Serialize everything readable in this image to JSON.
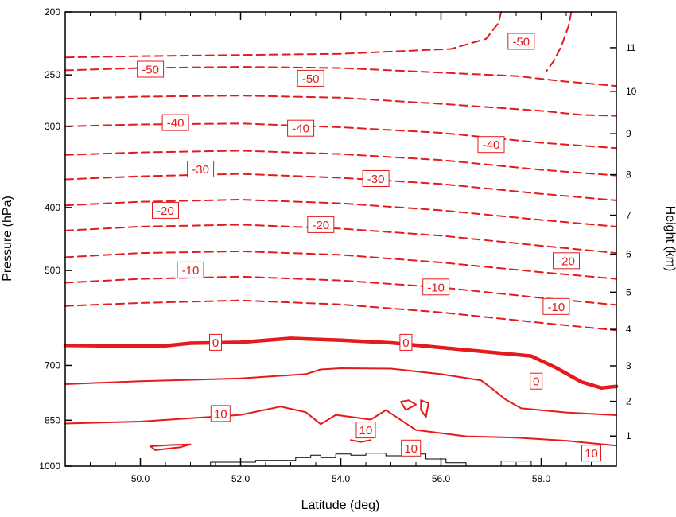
{
  "chart_data": {
    "type": "contour",
    "xlabel": "Latitude (deg)",
    "ylabel": "Pressure (hPa)",
    "y2label": "Height (km)",
    "xlim": [
      48.5,
      59.5
    ],
    "ylim_pressure": [
      1000,
      200
    ],
    "y_scale": "log",
    "x_ticks": [
      {
        "value": 50.0,
        "label": "50.0"
      },
      {
        "value": 52.0,
        "label": "52.0"
      },
      {
        "value": 54.0,
        "label": "54.0"
      },
      {
        "value": 56.0,
        "label": "56.0"
      },
      {
        "value": 58.0,
        "label": "58.0"
      }
    ],
    "y_ticks": [
      {
        "value": 200,
        "label": "200"
      },
      {
        "value": 250,
        "label": "250"
      },
      {
        "value": 300,
        "label": "300"
      },
      {
        "value": 400,
        "label": "400"
      },
      {
        "value": 500,
        "label": "500"
      },
      {
        "value": 700,
        "label": "700"
      },
      {
        "value": 850,
        "label": "850"
      },
      {
        "value": 1000,
        "label": "1000"
      }
    ],
    "height_ticks": [
      {
        "value": 1,
        "label": "1",
        "pressure": 899
      },
      {
        "value": 2,
        "label": "2",
        "pressure": 795
      },
      {
        "value": 3,
        "label": "3",
        "pressure": 701
      },
      {
        "value": 4,
        "label": "4",
        "pressure": 616
      },
      {
        "value": 5,
        "label": "5",
        "pressure": 540
      },
      {
        "value": 6,
        "label": "6",
        "pressure": 472
      },
      {
        "value": 7,
        "label": "7",
        "pressure": 411
      },
      {
        "value": 8,
        "label": "8",
        "pressure": 356
      },
      {
        "value": 9,
        "label": "9",
        "pressure": 308
      },
      {
        "value": 10,
        "label": "10",
        "pressure": 265
      },
      {
        "value": 11,
        "label": "11",
        "pressure": 227
      }
    ],
    "contour_color": "#e41a1c",
    "terrain_color": "#000000",
    "contours": [
      {
        "level": -55,
        "style": "dashed",
        "points": [
          [
            57.2,
            200
          ],
          [
            57.15,
            208
          ],
          [
            56.9,
            220
          ],
          [
            56.2,
            228
          ],
          [
            54.0,
            232
          ],
          [
            52.0,
            233
          ],
          [
            50.0,
            234
          ],
          [
            48.5,
            235
          ]
        ]
      },
      {
        "level": -55,
        "style": "dashed",
        "points": [
          [
            58.6,
            200
          ],
          [
            58.55,
            210
          ],
          [
            58.4,
            226
          ],
          [
            58.25,
            238
          ],
          [
            58.1,
            247
          ]
        ]
      },
      {
        "level": -50,
        "style": "dashed",
        "points": [
          [
            48.5,
            246
          ],
          [
            50.0,
            244
          ],
          [
            52.0,
            243
          ],
          [
            54.0,
            244
          ],
          [
            56.0,
            248
          ],
          [
            57.5,
            251
          ],
          [
            58.5,
            256
          ],
          [
            59.5,
            260
          ]
        ]
      },
      {
        "level": -45,
        "style": "dashed",
        "points": [
          [
            48.5,
            272
          ],
          [
            50.0,
            270
          ],
          [
            52.0,
            269
          ],
          [
            54.0,
            271
          ],
          [
            56.0,
            277
          ],
          [
            58.0,
            284
          ],
          [
            58.8,
            288
          ],
          [
            59.5,
            289
          ]
        ]
      },
      {
        "level": -40,
        "style": "dashed",
        "points": [
          [
            48.5,
            300
          ],
          [
            50.0,
            298
          ],
          [
            52.0,
            297
          ],
          [
            54.0,
            301
          ],
          [
            56.0,
            307
          ],
          [
            58.0,
            318
          ],
          [
            59.5,
            324
          ]
        ]
      },
      {
        "level": -35,
        "style": "dashed",
        "points": [
          [
            48.5,
            332
          ],
          [
            50.0,
            329
          ],
          [
            52.0,
            327
          ],
          [
            54.0,
            331
          ],
          [
            56.0,
            338
          ],
          [
            58.0,
            350
          ],
          [
            59.5,
            357
          ]
        ]
      },
      {
        "level": -30,
        "style": "dashed",
        "points": [
          [
            48.5,
            362
          ],
          [
            50.0,
            358
          ],
          [
            52.0,
            355
          ],
          [
            54.0,
            360
          ],
          [
            56.0,
            368
          ],
          [
            58.0,
            381
          ],
          [
            59.5,
            390
          ]
        ]
      },
      {
        "level": -25,
        "style": "dashed",
        "points": [
          [
            48.5,
            397
          ],
          [
            50.0,
            392
          ],
          [
            52.0,
            389
          ],
          [
            54.0,
            394
          ],
          [
            56.0,
            404
          ],
          [
            58.0,
            418
          ],
          [
            59.5,
            428
          ]
        ]
      },
      {
        "level": -20,
        "style": "dashed",
        "points": [
          [
            48.5,
            434
          ],
          [
            50.0,
            428
          ],
          [
            52.0,
            425
          ],
          [
            54.0,
            431
          ],
          [
            56.0,
            442
          ],
          [
            58.0,
            458
          ],
          [
            59.5,
            470
          ]
        ]
      },
      {
        "level": -15,
        "style": "dashed",
        "points": [
          [
            48.5,
            477
          ],
          [
            50.0,
            470
          ],
          [
            52.0,
            467
          ],
          [
            54.0,
            473
          ],
          [
            56.0,
            486
          ],
          [
            58.0,
            503
          ],
          [
            59.5,
            515
          ]
        ]
      },
      {
        "level": -10,
        "style": "dashed",
        "points": [
          [
            48.5,
            522
          ],
          [
            50.0,
            515
          ],
          [
            52.0,
            511
          ],
          [
            54.0,
            518
          ],
          [
            56.0,
            531
          ],
          [
            58.0,
            551
          ],
          [
            59.5,
            565
          ]
        ]
      },
      {
        "level": -5,
        "style": "dashed",
        "points": [
          [
            48.5,
            567
          ],
          [
            50.0,
            561
          ],
          [
            52.0,
            556
          ],
          [
            54.0,
            564
          ],
          [
            56.0,
            580
          ],
          [
            58.0,
            602
          ],
          [
            59.5,
            618
          ]
        ]
      },
      {
        "level": 0,
        "style": "bold",
        "points": [
          [
            48.5,
            652
          ],
          [
            50.0,
            654
          ],
          [
            50.5,
            653
          ],
          [
            51.0,
            647
          ],
          [
            52.0,
            645
          ],
          [
            53.0,
            636
          ],
          [
            54.0,
            640
          ],
          [
            55.0,
            646
          ],
          [
            56.0,
            657
          ],
          [
            57.0,
            668
          ],
          [
            57.8,
            677
          ],
          [
            58.3,
            706
          ],
          [
            58.8,
            742
          ],
          [
            59.2,
            758
          ],
          [
            59.5,
            754
          ]
        ]
      },
      {
        "level": 5,
        "style": "solid",
        "points": [
          [
            48.5,
            748
          ],
          [
            50.0,
            740
          ],
          [
            52.0,
            733
          ],
          [
            53.3,
            722
          ],
          [
            53.6,
            710
          ],
          [
            54.0,
            707
          ],
          [
            55.0,
            708
          ],
          [
            56.0,
            722
          ],
          [
            56.8,
            738
          ],
          [
            57.0,
            758
          ],
          [
            57.3,
            791
          ],
          [
            57.6,
            815
          ],
          [
            58.5,
            827
          ],
          [
            59.5,
            835
          ]
        ]
      },
      {
        "level": 10,
        "style": "solid",
        "points": [
          [
            48.5,
            860
          ],
          [
            50.0,
            854
          ],
          [
            52.0,
            834
          ],
          [
            52.8,
            810
          ],
          [
            53.3,
            826
          ],
          [
            53.6,
            862
          ],
          [
            53.9,
            834
          ],
          [
            54.3,
            842
          ],
          [
            54.6,
            848
          ],
          [
            54.9,
            820
          ],
          [
            55.5,
            880
          ],
          [
            56.5,
            900
          ],
          [
            57.5,
            904
          ],
          [
            58.5,
            914
          ],
          [
            59.5,
            930
          ]
        ]
      },
      {
        "level": 10,
        "style": "solid",
        "points": [
          [
            54.2,
            912
          ],
          [
            54.4,
            918
          ],
          [
            54.6,
            912
          ]
        ]
      },
      {
        "level": 15,
        "style": "solid",
        "points": [
          [
            55.2,
            796
          ],
          [
            55.35,
            792
          ],
          [
            55.5,
            804
          ],
          [
            55.3,
            820
          ],
          [
            55.2,
            796
          ]
        ]
      },
      {
        "level": 15,
        "style": "solid",
        "points": [
          [
            55.6,
            792
          ],
          [
            55.75,
            800
          ],
          [
            55.7,
            840
          ],
          [
            55.6,
            820
          ],
          [
            55.6,
            792
          ]
        ]
      },
      {
        "level": 5,
        "style": "solid",
        "points": [
          [
            50.3,
            945
          ],
          [
            50.8,
            935
          ],
          [
            51.0,
            926
          ],
          [
            50.6,
            928
          ],
          [
            50.2,
            932
          ],
          [
            50.3,
            945
          ]
        ]
      }
    ],
    "terrain": [
      [
        51.2,
        1000
      ],
      [
        51.4,
        986
      ],
      [
        51.9,
        986
      ],
      [
        52.3,
        980
      ],
      [
        52.8,
        980
      ],
      [
        53.1,
        970
      ],
      [
        53.4,
        962
      ],
      [
        53.6,
        970
      ],
      [
        53.9,
        958
      ],
      [
        54.2,
        962
      ],
      [
        54.5,
        955
      ],
      [
        54.9,
        964
      ],
      [
        55.3,
        958
      ],
      [
        55.7,
        975
      ],
      [
        56.1,
        988
      ],
      [
        56.5,
        1000
      ],
      [
        57.0,
        1000
      ],
      [
        57.2,
        982
      ],
      [
        57.6,
        982
      ],
      [
        57.8,
        1000
      ]
    ],
    "contour_labels": [
      {
        "text": "-50",
        "x": 57.6,
        "y": 222
      },
      {
        "text": "-50",
        "x": 50.2,
        "y": 245
      },
      {
        "text": "-50",
        "x": 53.4,
        "y": 253
      },
      {
        "text": "-40",
        "x": 50.7,
        "y": 296
      },
      {
        "text": "-40",
        "x": 53.2,
        "y": 302
      },
      {
        "text": "-40",
        "x": 57.0,
        "y": 320
      },
      {
        "text": "-30",
        "x": 51.2,
        "y": 349
      },
      {
        "text": "-30",
        "x": 54.7,
        "y": 361
      },
      {
        "text": "-20",
        "x": 50.5,
        "y": 404
      },
      {
        "text": "-20",
        "x": 53.6,
        "y": 425
      },
      {
        "text": "-20",
        "x": 58.5,
        "y": 483
      },
      {
        "text": "-10",
        "x": 51.0,
        "y": 499
      },
      {
        "text": "-10",
        "x": 55.9,
        "y": 530
      },
      {
        "text": "-10",
        "x": 58.3,
        "y": 568
      },
      {
        "text": "0",
        "x": 51.5,
        "y": 645
      },
      {
        "text": "0",
        "x": 55.3,
        "y": 645
      },
      {
        "text": "0",
        "x": 57.9,
        "y": 740
      },
      {
        "text": "10",
        "x": 51.6,
        "y": 830
      },
      {
        "text": "10",
        "x": 54.5,
        "y": 880
      },
      {
        "text": "10",
        "x": 55.4,
        "y": 938
      },
      {
        "text": "10",
        "x": 59.0,
        "y": 955
      }
    ]
  }
}
